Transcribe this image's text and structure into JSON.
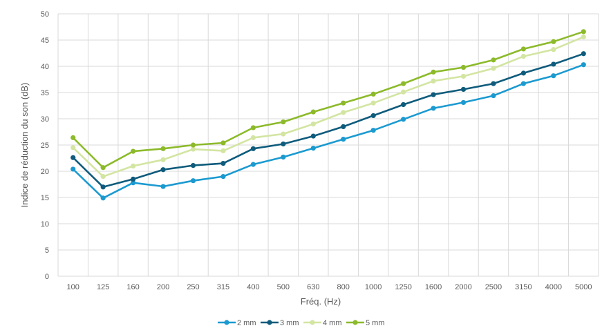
{
  "chart_data": {
    "type": "line",
    "title": "",
    "xlabel": "Fréq. (Hz)",
    "ylabel": "Indice de réduction du son (dB)",
    "ylim": [
      0,
      50
    ],
    "ytick_step": 5,
    "grid": true,
    "legend_position": "bottom",
    "categories": [
      "100",
      "125",
      "160",
      "200",
      "250",
      "315",
      "400",
      "500",
      "630",
      "800",
      "1000",
      "1250",
      "1600",
      "2000",
      "2500",
      "3150",
      "4000",
      "5000"
    ],
    "series": [
      {
        "name": "2 mm",
        "color": "#1b9ad0",
        "values": [
          20.4,
          14.9,
          17.8,
          17.1,
          18.2,
          19.0,
          21.3,
          22.7,
          24.4,
          26.1,
          27.8,
          29.9,
          32.0,
          33.1,
          34.4,
          36.7,
          38.2,
          40.3
        ]
      },
      {
        "name": "3 mm",
        "color": "#0e5b7c",
        "values": [
          22.6,
          17.0,
          18.5,
          20.3,
          21.1,
          21.5,
          24.3,
          25.2,
          26.7,
          28.5,
          30.6,
          32.7,
          34.6,
          35.6,
          36.7,
          38.7,
          40.4,
          42.4
        ]
      },
      {
        "name": "4 mm",
        "color": "#d3e5a2",
        "values": [
          24.5,
          19.0,
          21.0,
          22.2,
          24.2,
          23.9,
          26.4,
          27.1,
          29.0,
          31.2,
          33.0,
          35.1,
          37.2,
          38.1,
          39.6,
          41.9,
          43.2,
          45.6
        ]
      },
      {
        "name": "5 mm",
        "color": "#8cba2a",
        "values": [
          26.4,
          20.7,
          23.8,
          24.3,
          25.0,
          25.4,
          28.3,
          29.4,
          31.3,
          33.0,
          34.7,
          36.7,
          38.9,
          39.8,
          41.2,
          43.3,
          44.7,
          46.6
        ]
      }
    ]
  }
}
